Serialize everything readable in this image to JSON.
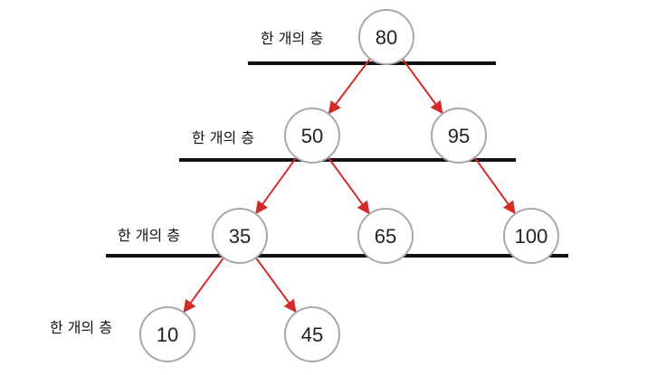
{
  "diagram": {
    "level_label": "한 개의 층",
    "colors": {
      "edge": "#d42a2a",
      "node_border": "#a8a8a8",
      "level_line": "#111111"
    },
    "nodes": [
      {
        "id": "n80",
        "value": "80"
      },
      {
        "id": "n50",
        "value": "50"
      },
      {
        "id": "n95",
        "value": "95"
      },
      {
        "id": "n35",
        "value": "35"
      },
      {
        "id": "n65",
        "value": "65"
      },
      {
        "id": "n100",
        "value": "100"
      },
      {
        "id": "n10",
        "value": "10"
      },
      {
        "id": "n45",
        "value": "45"
      }
    ],
    "edges": [
      {
        "from": "n80",
        "to": "n50"
      },
      {
        "from": "n80",
        "to": "n95"
      },
      {
        "from": "n50",
        "to": "n35"
      },
      {
        "from": "n50",
        "to": "n65"
      },
      {
        "from": "n95",
        "to": "n100"
      },
      {
        "from": "n35",
        "to": "n10"
      },
      {
        "from": "n35",
        "to": "n45"
      }
    ]
  }
}
